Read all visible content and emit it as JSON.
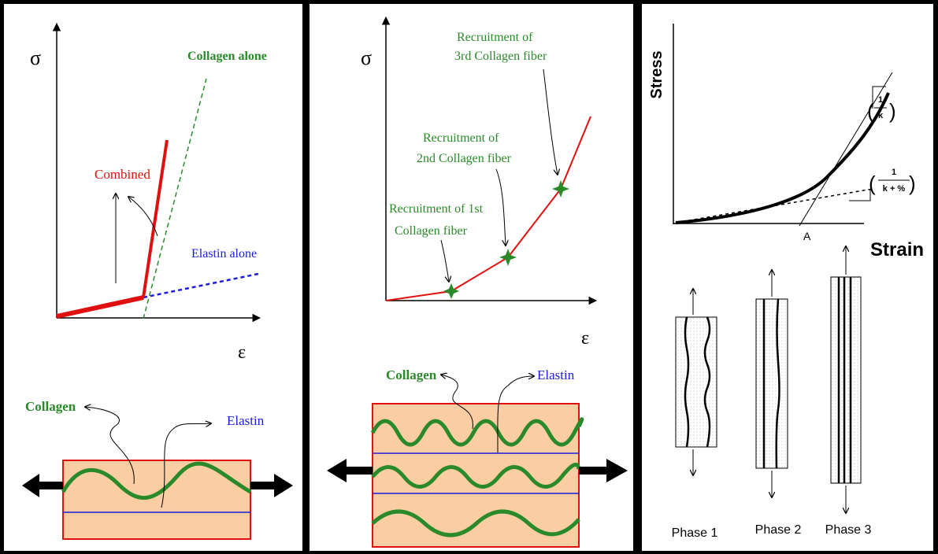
{
  "panel_1": {
    "y_axis": "σ",
    "x_axis": "ε",
    "collagen_alone": "Collagen alone",
    "combined": "Combined",
    "elastin_alone": "Elastin alone",
    "collagen": "Collagen",
    "elastin": "Elastin"
  },
  "panel_2": {
    "y_axis": "σ",
    "x_axis": "ε",
    "recruitment_3": [
      "Recruitment of",
      "3rd Collagen fiber"
    ],
    "recruitment_2": [
      "Recruitment of",
      "2nd Collagen fiber"
    ],
    "recruitment_1": [
      "Recruitment of 1st",
      "Collagen fiber"
    ],
    "collagen": "Collagen",
    "elastin": "Elastin"
  },
  "panel_3": {
    "y_axis": "Stress",
    "x_axis": "Strain",
    "point": "A",
    "slope_1": [
      "1",
      "k"
    ],
    "slope_2": [
      "1",
      "k + %"
    ],
    "phases": [
      "Phase 1",
      "Phase 2",
      "Phase 3"
    ]
  }
}
